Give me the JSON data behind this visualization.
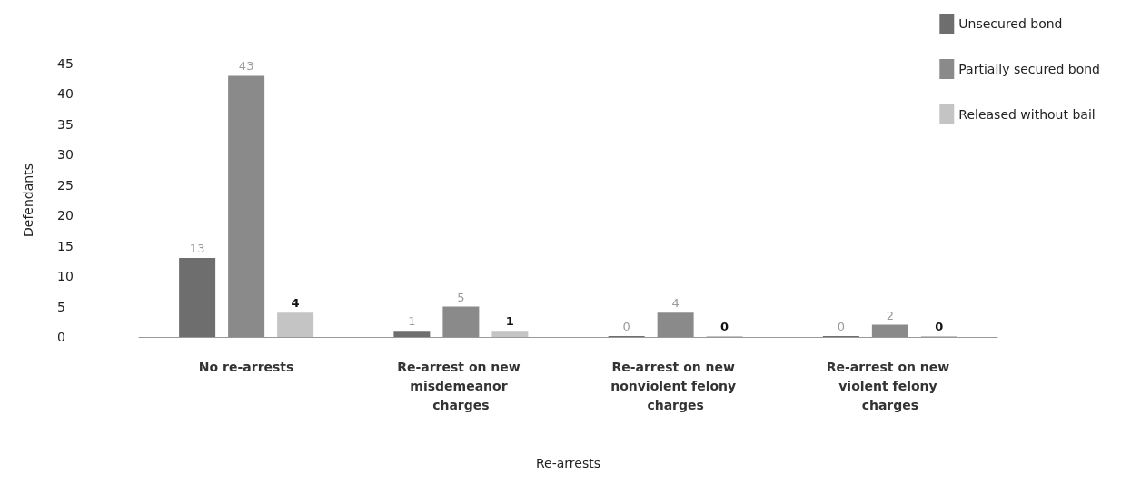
{
  "chart_data": {
    "type": "bar",
    "xlabel": "Re-arrests",
    "ylabel": "Defendants",
    "categories": [
      "No re-arrests",
      "Re-arrest on new misdemeanor charges",
      "Re-arrest on new nonviolent felony charges",
      "Re-arrest on new violent felony charges"
    ],
    "series": [
      {
        "name": "Unsecured bond",
        "color": "#6e6e6e",
        "values": [
          13,
          1,
          0,
          0
        ]
      },
      {
        "name": "Partially secured bond",
        "color": "#8a8a8a",
        "values": [
          43,
          5,
          4,
          2
        ]
      },
      {
        "name": "Released without bail",
        "color": "#c4c4c4",
        "values": [
          4,
          1,
          0,
          0
        ]
      }
    ],
    "ylim": [
      0,
      45
    ],
    "yticks": [
      0,
      5,
      10,
      15,
      20,
      25,
      30,
      35,
      40,
      45
    ],
    "data_labels": true,
    "grid": false,
    "legend": "top right"
  }
}
